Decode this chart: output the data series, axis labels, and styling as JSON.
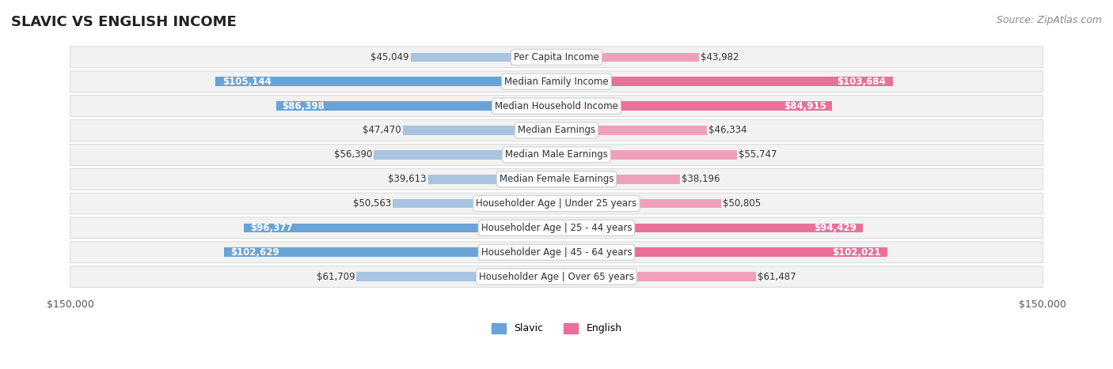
{
  "title": "SLAVIC VS ENGLISH INCOME",
  "source": "Source: ZipAtlas.com",
  "categories": [
    "Per Capita Income",
    "Median Family Income",
    "Median Household Income",
    "Median Earnings",
    "Median Male Earnings",
    "Median Female Earnings",
    "Householder Age | Under 25 years",
    "Householder Age | 25 - 44 years",
    "Householder Age | 45 - 64 years",
    "Householder Age | Over 65 years"
  ],
  "slavic_values": [
    45049,
    105144,
    86398,
    47470,
    56390,
    39613,
    50563,
    96377,
    102629,
    61709
  ],
  "english_values": [
    43982,
    103684,
    84915,
    46334,
    55747,
    38196,
    50805,
    94429,
    102021,
    61487
  ],
  "slavic_labels": [
    "$45,049",
    "$105,144",
    "$86,398",
    "$47,470",
    "$56,390",
    "$39,613",
    "$50,563",
    "$96,377",
    "$102,629",
    "$61,709"
  ],
  "english_labels": [
    "$43,982",
    "$103,684",
    "$84,915",
    "$46,334",
    "$55,747",
    "$38,196",
    "$50,805",
    "$94,429",
    "$102,021",
    "$61,487"
  ],
  "max_value": 150000,
  "slavic_color_light": "#a8c4e0",
  "slavic_color_strong": "#6aa3d5",
  "english_color_light": "#f0a0b8",
  "english_color_strong": "#e8709a",
  "label_threshold": 80000,
  "bg_color": "#ffffff",
  "row_bg": "#f0f0f0",
  "row_bg_alt": "#ffffff",
  "title_fontsize": 13,
  "source_fontsize": 9,
  "bar_label_fontsize": 8.5,
  "category_fontsize": 8.5,
  "axis_label_fontsize": 9
}
